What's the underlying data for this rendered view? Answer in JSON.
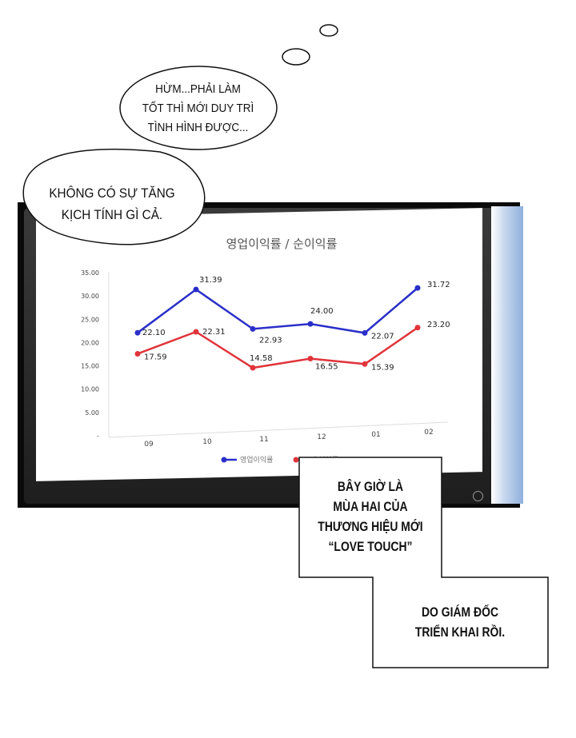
{
  "bubbles": {
    "thought": "HỪM...PHẢI LÀM TỐT THÌ MỚI DUY TRÌ TÌNH HÌNH ĐƯỢC...",
    "thought_lines": [
      "HỪM...PHẢI LÀM",
      "TỐT THÌ MỚI DUY TRÌ",
      "TÌNH HÌNH ĐƯỢC..."
    ],
    "speech_lines": [
      "KHÔNG CÓ SỰ TĂNG",
      "KỊCH TÍNH GÌ CẢ."
    ]
  },
  "captions": {
    "box1_lines": [
      "BÂY GIỜ LÀ",
      "MÙA HAI CỦA",
      "THƯƠNG HIỆU MỚI",
      "“LOVE TOUCH”"
    ],
    "box2_lines": [
      "DO GIÁM ĐỐC",
      "TRIỂN KHAI RỒI."
    ]
  },
  "chart_data": {
    "type": "line",
    "title": "영업이익률 / 순이익률",
    "categories": [
      "09",
      "10",
      "11",
      "12",
      "01",
      "02"
    ],
    "ylim": [
      0,
      35
    ],
    "yticks": [
      "-",
      "5.00",
      "10.00",
      "15.00",
      "20.00",
      "25.00",
      "30.00",
      "35.00"
    ],
    "grid": false,
    "legend": "bottom",
    "series": [
      {
        "name": "영업이익률",
        "color": "#2a2fc8",
        "values": [
          22.1,
          31.39,
          22.93,
          24.0,
          22.07,
          31.72
        ],
        "labels": [
          "22.10",
          "31.39",
          "22.93",
          "24.00",
          "22.07",
          "31.72"
        ]
      },
      {
        "name": "순이익률",
        "color": "#e0343a",
        "values": [
          17.59,
          22.31,
          14.58,
          16.55,
          15.39,
          23.2
        ],
        "labels": [
          "17.59",
          "22.31",
          "14.58",
          "16.55",
          "15.39",
          "23.20"
        ]
      }
    ]
  }
}
